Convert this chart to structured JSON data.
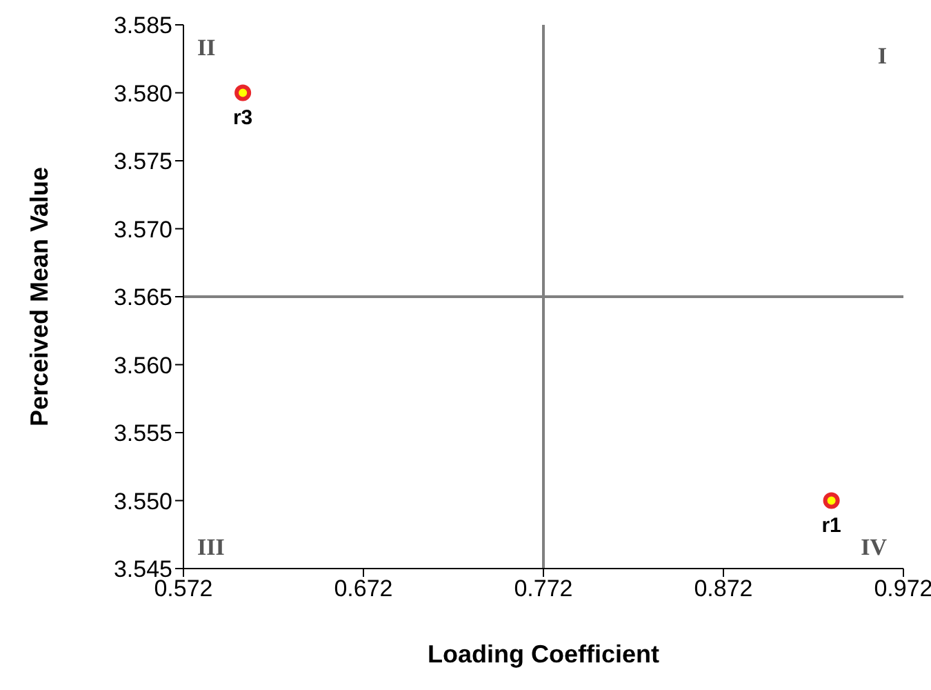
{
  "chart_data": {
    "type": "scatter",
    "xlabel": "Loading Coefficient",
    "ylabel": "Perceived Mean Value",
    "x": [
      0.605,
      0.932
    ],
    "series": [
      {
        "color": "#e8262a",
        "values": [
          3.58,
          3.55
        ]
      }
    ],
    "xlim": [
      0.572,
      0.972
    ],
    "xticks": [
      0.572,
      0.672,
      0.772,
      0.872,
      0.972
    ],
    "ylim": [
      3.545,
      3.585
    ],
    "yticks": [
      {
        "value": 3.545,
        "label": "3.545"
      },
      {
        "value": 3.55,
        "label": "3.550"
      },
      {
        "value": 3.555,
        "label": "3.555"
      },
      {
        "value": 3.56,
        "label": "3.560"
      },
      {
        "value": 3.565,
        "label": "3.565"
      },
      {
        "value": 3.57,
        "label": "3.570"
      },
      {
        "value": 3.575,
        "label": "3.575"
      },
      {
        "value": 3.58,
        "label": "3.580"
      },
      {
        "value": 3.585,
        "label": "3.585"
      }
    ],
    "ref_lines": [
      {
        "axis": "x",
        "value": 0.772,
        "color": "#808080"
      },
      {
        "axis": "y",
        "value": 3.565,
        "color": "#808080"
      }
    ],
    "marker": "circle",
    "grid": false,
    "legend": false,
    "annotations": [
      "I",
      "II",
      "III",
      "IV",
      {
        "text": "r3",
        "x": 0.605,
        "y": 3.58
      },
      {
        "text": "r1",
        "x": 0.932,
        "y": 3.55
      }
    ]
  }
}
